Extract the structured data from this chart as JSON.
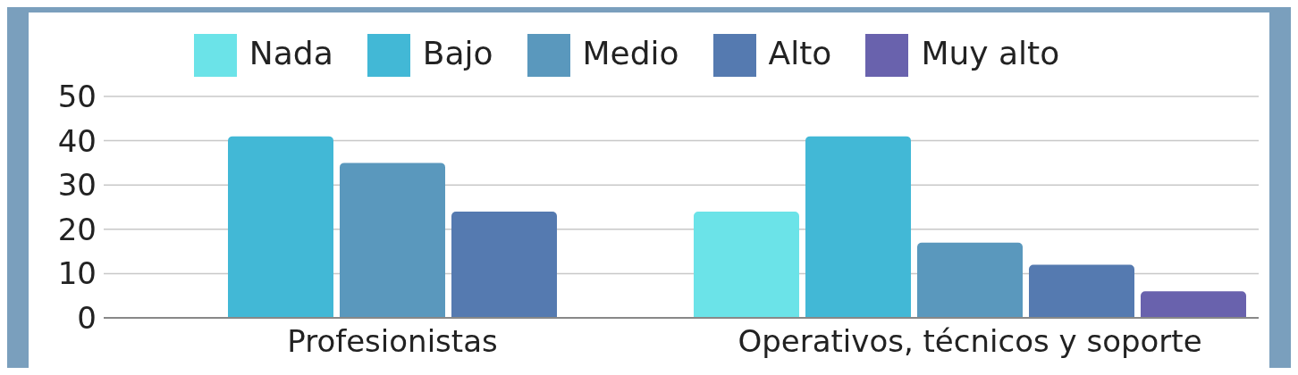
{
  "chart_data": {
    "type": "bar",
    "categories": [
      "Profesionistas",
      "Operativos, técnicos y soporte"
    ],
    "series": [
      {
        "name": "Nada",
        "color": "#6be3e8",
        "values": [
          0,
          24
        ]
      },
      {
        "name": "Bajo",
        "color": "#42b8d6",
        "values": [
          41,
          41
        ]
      },
      {
        "name": "Medio",
        "color": "#5a98bd",
        "values": [
          35,
          17
        ]
      },
      {
        "name": "Alto",
        "color": "#557ab0",
        "values": [
          24,
          12
        ]
      },
      {
        "name": "Muy alto",
        "color": "#6962ad",
        "values": [
          0,
          6
        ]
      }
    ],
    "ylim": [
      0,
      50
    ],
    "yticks": [
      0,
      10,
      20,
      30,
      40,
      50
    ],
    "grid": "y",
    "legend": "top"
  }
}
